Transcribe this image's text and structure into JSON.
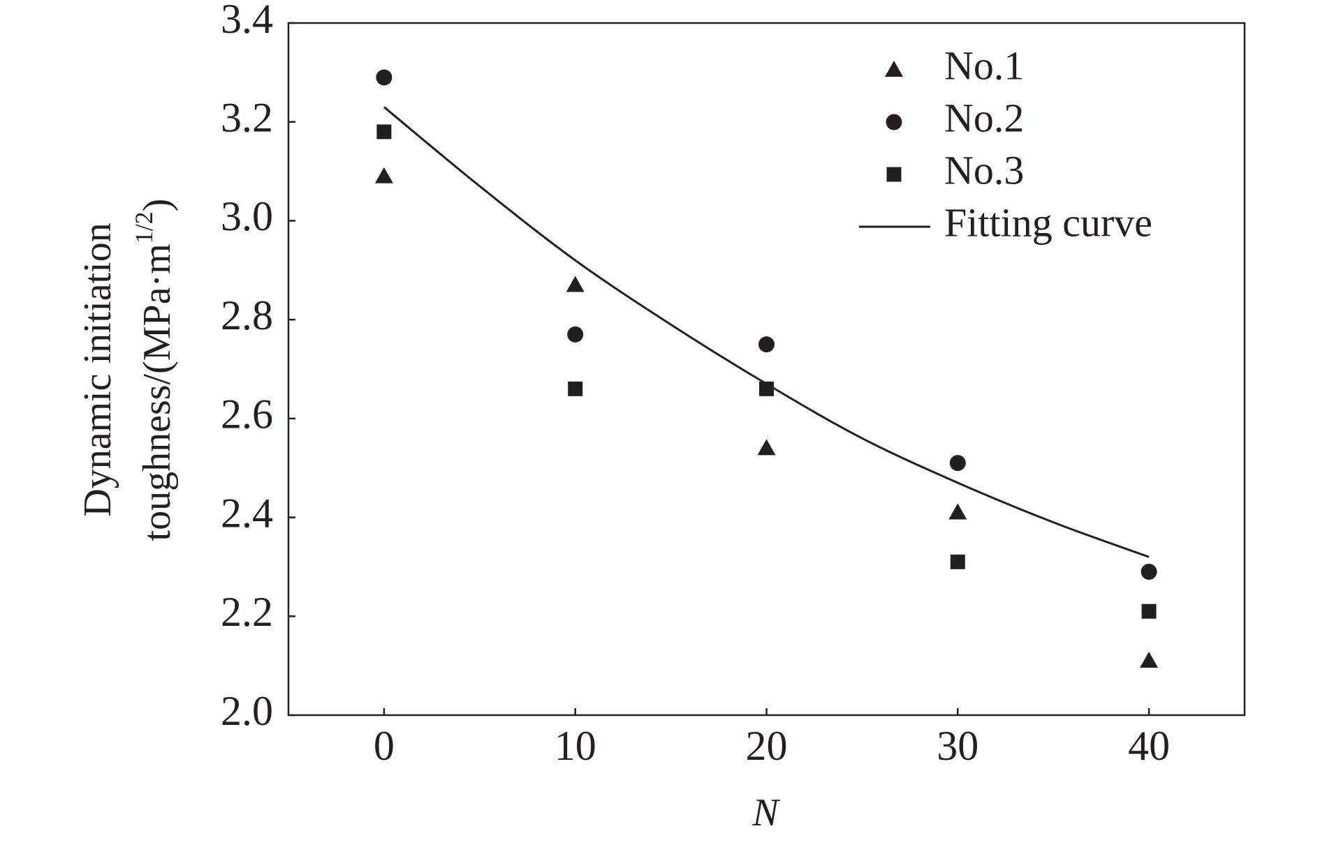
{
  "chart_data": {
    "type": "scatter",
    "x_label": "N",
    "y_label": {
      "line1": "Dynamic initiation",
      "line2": "toughness/(MPa·m",
      "exponent": "1/2",
      "close": ")"
    },
    "xlim": [
      -5,
      45
    ],
    "xticks": [
      0,
      10,
      20,
      30,
      40
    ],
    "ylim": [
      2.0,
      3.4
    ],
    "yticks": [
      {
        "value": 2.0,
        "label": "2.0"
      },
      2.2,
      2.4,
      2.6,
      2.8,
      {
        "value": 3.0,
        "label": "3.0"
      },
      3.2,
      3.4
    ],
    "legend": "upper right",
    "series": [
      {
        "name": "No.1",
        "marker": "triangle",
        "color": "#231f20",
        "x": [
          0,
          10,
          20,
          30,
          40
        ],
        "values": [
          3.09,
          2.87,
          2.54,
          2.41,
          2.11
        ]
      },
      {
        "name": "No.2",
        "marker": "circle",
        "color": "#231f20",
        "x": [
          0,
          10,
          20,
          30,
          40
        ],
        "values": [
          3.29,
          2.77,
          2.75,
          2.51,
          2.29
        ]
      },
      {
        "name": "No.3",
        "marker": "square",
        "color": "#231f20",
        "x": [
          0,
          10,
          20,
          30,
          40
        ],
        "values": [
          3.18,
          2.66,
          2.66,
          2.31,
          2.21
        ]
      },
      {
        "name": "Fitting curve",
        "marker": "line",
        "color": "#231f20",
        "x": [
          0,
          5,
          10,
          15,
          20,
          25,
          30,
          35,
          40
        ],
        "values": [
          3.23,
          3.07,
          2.92,
          2.79,
          2.67,
          2.56,
          2.47,
          2.39,
          2.32
        ]
      }
    ]
  }
}
